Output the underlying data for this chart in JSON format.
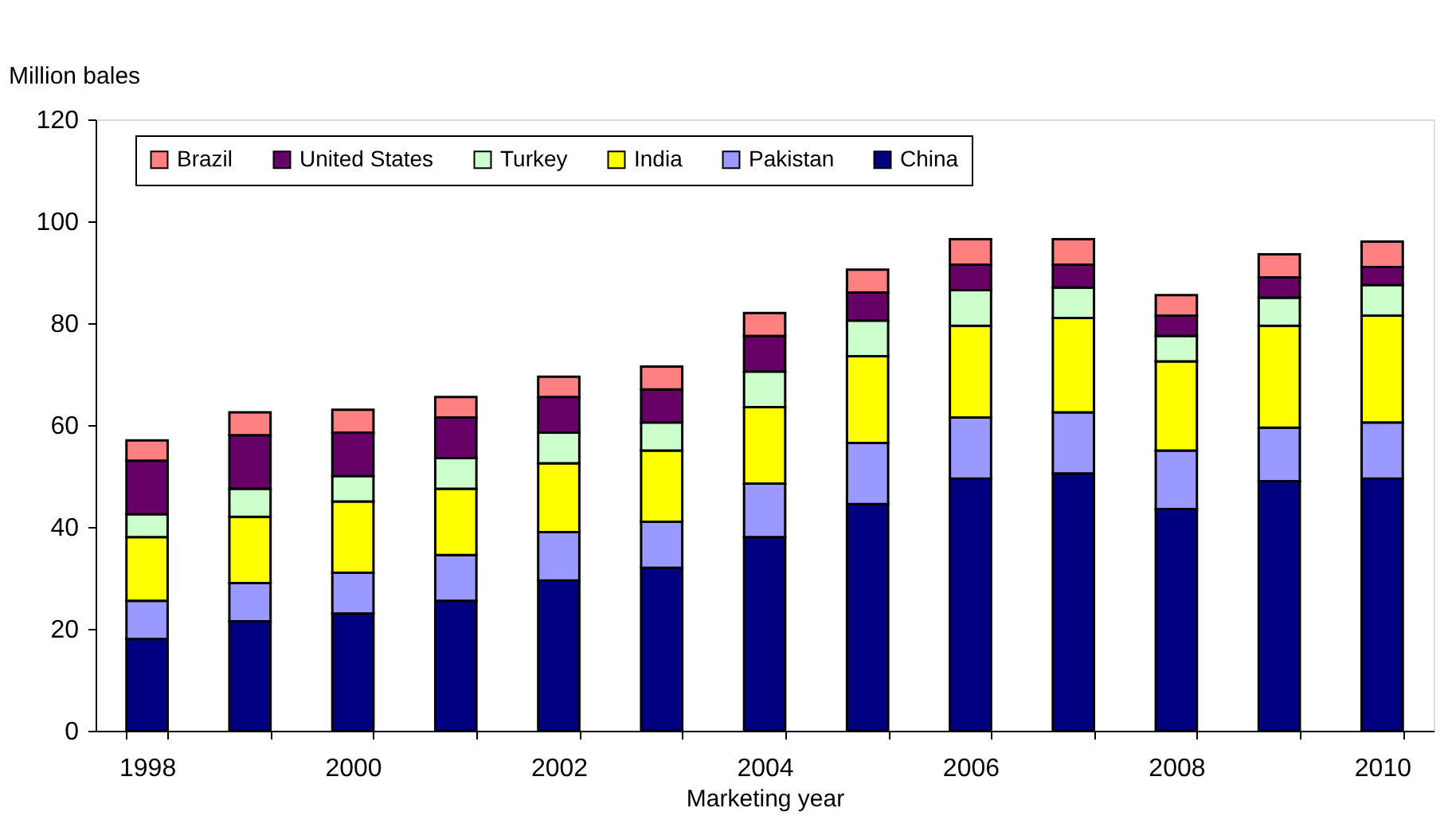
{
  "chart_data": {
    "type": "bar",
    "stacked": true,
    "xlabel": "Marketing year",
    "ylabel": "Million bales",
    "categories": [
      "1998",
      null,
      "2000",
      null,
      "2002",
      null,
      "2004",
      null,
      "2006",
      null,
      "2008",
      null,
      "2010"
    ],
    "series": [
      {
        "name": "China",
        "color": "#000080",
        "values": [
          18,
          21.5,
          23,
          25.5,
          29.5,
          32,
          38,
          44.5,
          49.5,
          50.5,
          43.5,
          49,
          49.5
        ]
      },
      {
        "name": "Pakistan",
        "color": "#9999ff",
        "values": [
          7.5,
          7.5,
          8,
          9,
          9.5,
          9,
          10.5,
          12,
          12,
          12,
          11.5,
          10.5,
          11
        ]
      },
      {
        "name": "India",
        "color": "#ffff00",
        "values": [
          12.5,
          13,
          14,
          13,
          13.5,
          14,
          15,
          17,
          18,
          18.5,
          17.5,
          20,
          21
        ]
      },
      {
        "name": "Turkey",
        "color": "#ccffcc",
        "values": [
          4.5,
          5.5,
          5,
          6,
          6,
          5.5,
          7,
          7,
          7,
          6,
          5,
          5.5,
          6
        ]
      },
      {
        "name": "United States",
        "color": "#660066",
        "values": [
          10.5,
          10.5,
          8.5,
          8,
          7,
          6.5,
          7,
          5.5,
          5,
          4.5,
          4,
          4,
          3.5
        ]
      },
      {
        "name": "Brazil",
        "color": "#ff8080",
        "values": [
          4,
          4.5,
          4.5,
          4,
          4,
          4.5,
          4.5,
          4.5,
          5,
          5,
          4,
          4.5,
          5
        ]
      }
    ],
    "ylim": [
      0,
      120
    ],
    "yticks": [
      0,
      20,
      40,
      60,
      80,
      100,
      120
    ],
    "grid": false,
    "legend": "top"
  }
}
